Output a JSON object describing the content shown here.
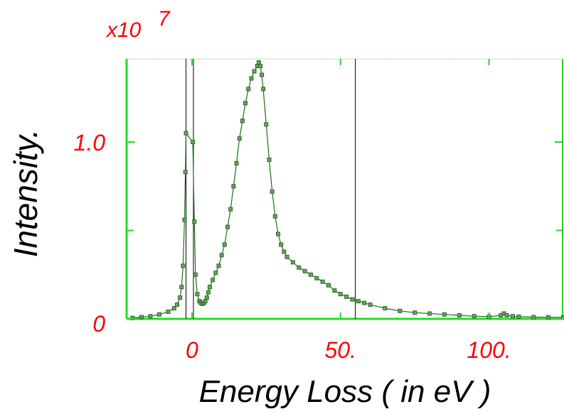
{
  "chart_data": {
    "type": "scatter",
    "title": "",
    "xlabel": "Energy Loss ( in eV )",
    "ylabel": "Intensity.",
    "y_multiplier_label": "x10",
    "y_multiplier_exponent": "7",
    "xlim": [
      -22,
      125
    ],
    "ylim": [
      0,
      1.47
    ],
    "x_tick_labels": [
      "0",
      "50.",
      "100."
    ],
    "x_ticks": [
      0,
      50,
      100
    ],
    "y_tick_labels": [
      "0",
      "1.0"
    ],
    "y_ticks": [
      0,
      1.0
    ],
    "y_minor_ticks": [
      0.5
    ],
    "vertical_markers_x": [
      -2,
      0.5,
      55
    ],
    "grid": false,
    "colors": {
      "series": "#1e6e1e",
      "marker_fill": "#7a9a6a",
      "axis": "#22dd22",
      "tick_text": "#ff0000",
      "marker_line": "#000000"
    },
    "series": [
      {
        "values_unit": "x10^7",
        "x": [
          -20,
          -17,
          -14,
          -11,
          -8,
          -6,
          -5,
          -4,
          -3.5,
          -3,
          -2.5,
          -2.2,
          -2,
          0.3,
          0.8,
          1.2,
          1.8,
          2.5,
          3,
          3.5,
          4,
          4.5,
          5,
          5.5,
          6,
          7,
          8,
          9,
          10,
          11,
          12,
          13,
          14,
          15,
          16,
          17,
          18,
          19,
          20,
          21,
          22,
          22.5,
          23,
          23.5,
          24,
          25,
          26,
          27,
          28,
          29,
          30,
          31,
          32,
          34,
          36,
          38,
          40,
          42,
          44,
          46,
          48,
          50,
          52,
          54,
          56,
          58,
          60,
          65,
          70,
          75,
          80,
          85,
          90,
          95,
          100,
          104,
          105,
          106,
          108,
          110,
          115,
          120,
          125
        ],
        "values": [
          0.005,
          0.01,
          0.015,
          0.025,
          0.04,
          0.06,
          0.08,
          0.12,
          0.18,
          0.3,
          0.56,
          0.83,
          1.05,
          1.0,
          0.55,
          0.25,
          0.14,
          0.1,
          0.09,
          0.085,
          0.09,
          0.1,
          0.12,
          0.15,
          0.18,
          0.22,
          0.26,
          0.3,
          0.36,
          0.42,
          0.52,
          0.62,
          0.75,
          0.88,
          1.02,
          1.12,
          1.22,
          1.3,
          1.36,
          1.4,
          1.43,
          1.45,
          1.43,
          1.38,
          1.3,
          1.1,
          0.9,
          0.72,
          0.58,
          0.48,
          0.42,
          0.38,
          0.35,
          0.32,
          0.29,
          0.27,
          0.25,
          0.23,
          0.21,
          0.19,
          0.16,
          0.14,
          0.125,
          0.11,
          0.1,
          0.09,
          0.08,
          0.06,
          0.045,
          0.035,
          0.03,
          0.025,
          0.02,
          0.015,
          0.012,
          0.02,
          0.03,
          0.02,
          0.015,
          0.012,
          0.01,
          0.009,
          0.009
        ]
      }
    ]
  }
}
